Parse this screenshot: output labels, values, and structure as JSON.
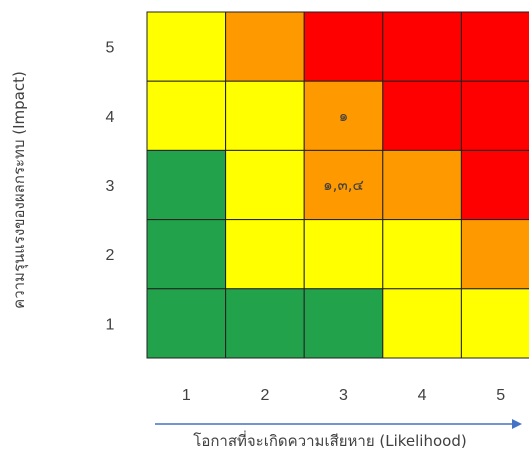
{
  "chart_data": {
    "type": "heatmap",
    "title": "",
    "xlabel": "โอกาสที่จะเกิดความเสียหาย (Likelihood)",
    "ylabel": "ความรุนแรงของผลกระทบ (Impact)",
    "x_ticks": [
      "1",
      "2",
      "3",
      "4",
      "5"
    ],
    "y_ticks": [
      "5",
      "4",
      "3",
      "2",
      "1"
    ],
    "colors": {
      "green": "#21A24B",
      "yellow": "#FFFF00",
      "orange": "#FF9900",
      "red": "#FF0000"
    },
    "grid": [
      [
        "yellow",
        "orange",
        "red",
        "red",
        "red"
      ],
      [
        "yellow",
        "yellow",
        "orange",
        "red",
        "red"
      ],
      [
        "green",
        "yellow",
        "orange",
        "orange",
        "red"
      ],
      [
        "green",
        "yellow",
        "yellow",
        "yellow",
        "orange"
      ],
      [
        "green",
        "green",
        "green",
        "yellow",
        "yellow"
      ]
    ],
    "cell_labels": [
      {
        "likelihood": 3,
        "impact": 4,
        "text": "๑"
      },
      {
        "likelihood": 3,
        "impact": 3,
        "text": "๑,๓,๔"
      }
    ],
    "arrow_color": "#4472C4"
  }
}
